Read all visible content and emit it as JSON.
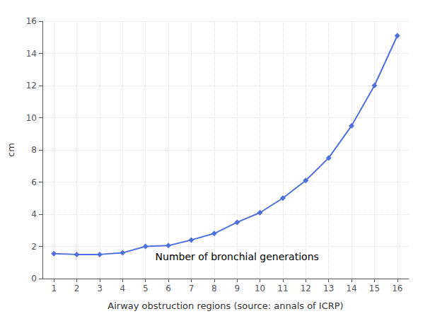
{
  "chart_data": {
    "type": "line",
    "x": [
      1,
      2,
      3,
      4,
      5,
      6,
      7,
      8,
      9,
      10,
      11,
      12,
      13,
      14,
      15,
      16
    ],
    "values": [
      1.55,
      1.5,
      1.5,
      1.6,
      2.0,
      2.05,
      2.4,
      2.8,
      3.5,
      4.1,
      5.0,
      6.1,
      7.5,
      9.5,
      12.0,
      15.1
    ],
    "xlabel": "Airway obstruction regions (source: annals of ICRP)",
    "ylabel": "cm",
    "annotations": [
      {
        "text": "Number of bronchial generations",
        "x": 9.0,
        "y": 1.05
      }
    ],
    "xlim": [
      0.5,
      16.5
    ],
    "ylim": [
      0,
      16
    ],
    "xticks": [
      1,
      2,
      3,
      4,
      5,
      6,
      7,
      8,
      9,
      10,
      11,
      12,
      13,
      14,
      15,
      16
    ],
    "yticks": [
      0,
      2,
      4,
      6,
      8,
      10,
      12,
      14,
      16
    ],
    "marker": "diamond",
    "grid": true
  }
}
